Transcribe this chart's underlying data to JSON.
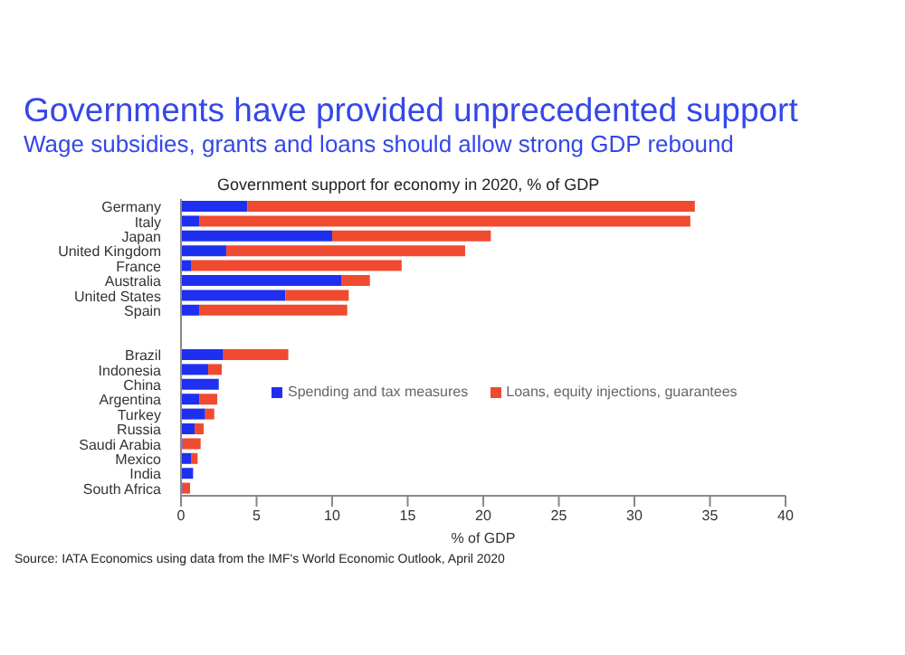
{
  "chart_data": {
    "type": "bar",
    "orientation": "horizontal",
    "stacked": true,
    "title": "Governments have provided unprecedented support",
    "subtitle": "Wage subsidies, grants and loans should allow strong GDP rebound",
    "xlabel": "% of GDP",
    "categories": [
      "Germany",
      "Italy",
      "Japan",
      "United Kingdom",
      "France",
      "Australia",
      "United States",
      "Spain",
      null,
      null,
      "Brazil",
      "Indonesia",
      "China",
      "Argentina",
      "Turkey",
      "Russia",
      "Saudi Arabia",
      "Mexico",
      "India",
      "South Africa"
    ],
    "series": [
      {
        "name": "Spending and tax measures",
        "color": "#1f2ff0",
        "values": [
          4.4,
          1.2,
          10.0,
          3.0,
          0.7,
          10.6,
          6.9,
          1.2,
          null,
          null,
          2.8,
          1.8,
          2.5,
          1.2,
          1.6,
          0.9,
          0.1,
          0.7,
          0.8,
          0.1
        ]
      },
      {
        "name": "Loans, equity injections, guarantees",
        "color": "#f04a30",
        "values": [
          29.6,
          32.5,
          10.5,
          15.8,
          13.9,
          1.9,
          4.2,
          9.8,
          null,
          null,
          4.3,
          0.9,
          0,
          1.2,
          0.6,
          0.6,
          1.2,
          0.4,
          0,
          0.5
        ]
      }
    ],
    "xlim": [
      0,
      40
    ],
    "xticks": [
      0,
      5,
      10,
      15,
      20,
      25,
      30,
      35,
      40
    ],
    "legend": "right",
    "grid": false,
    "annotations": [
      "Government support for economy in 2020, % of GDP",
      "Source: IATA Economics using data from the IMF's World Economic Outlook, April 2020"
    ]
  }
}
